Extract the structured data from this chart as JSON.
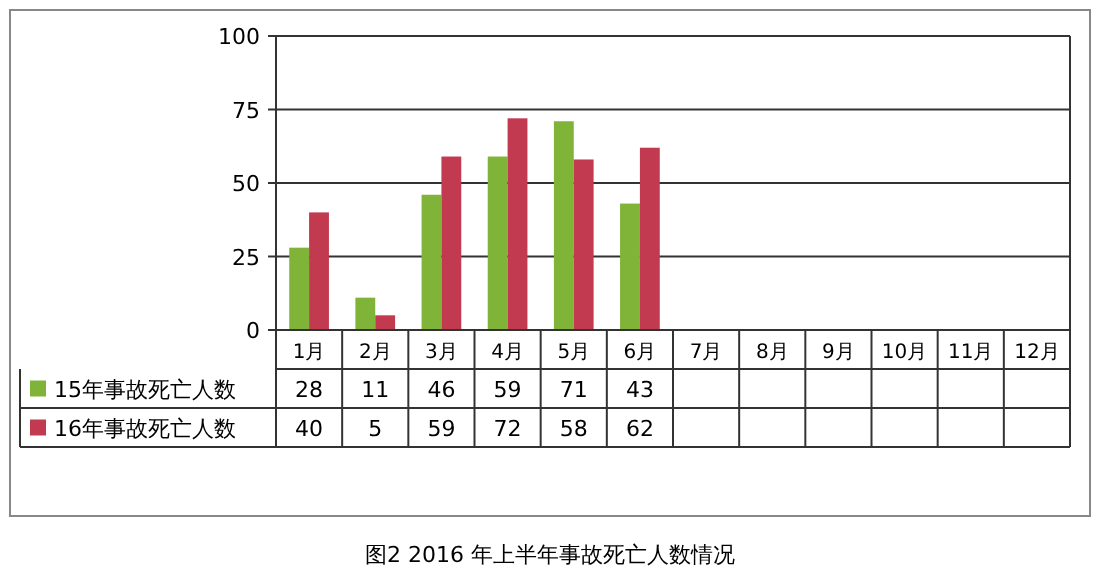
{
  "chart_data": {
    "type": "bar",
    "title": "图2  2016 年上半年事故死亡人数情况",
    "categories": [
      "1月",
      "2月",
      "3月",
      "4月",
      "5月",
      "6月",
      "7月",
      "8月",
      "9月",
      "10月",
      "11月",
      "12月"
    ],
    "series": [
      {
        "name": "15年事故死亡人数",
        "color": "#7fb439",
        "values": [
          28,
          11,
          46,
          59,
          71,
          43,
          null,
          null,
          null,
          null,
          null,
          null
        ]
      },
      {
        "name": "16年事故死亡人数",
        "color": "#c23a50",
        "values": [
          40,
          5,
          59,
          72,
          58,
          62,
          null,
          null,
          null,
          null,
          null,
          null
        ]
      }
    ],
    "ylim": [
      0,
      100
    ],
    "yticks": [
      0,
      25,
      50,
      75,
      100
    ],
    "grid": "y",
    "legend": "bottom",
    "data_labels": true
  }
}
